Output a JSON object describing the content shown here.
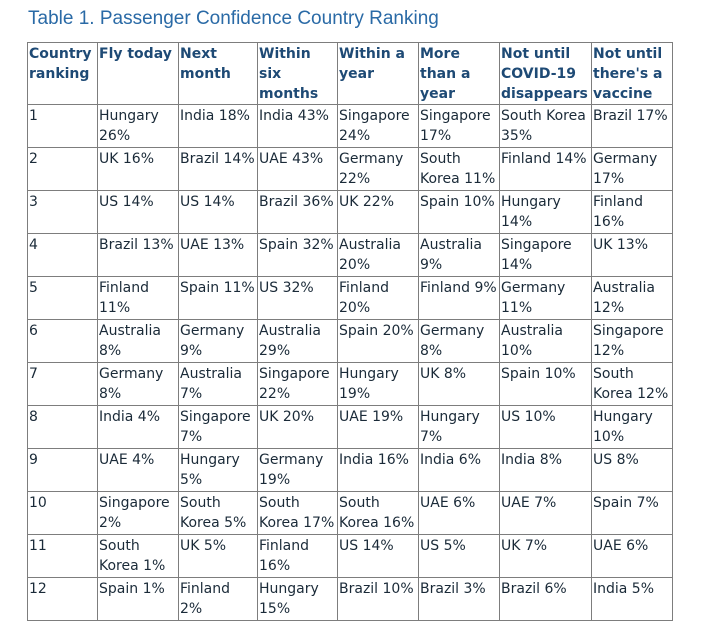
{
  "caption": "Table 1. Passenger Confidence Country Ranking",
  "table": {
    "headers": [
      "Country ranking",
      "Fly today",
      "Next month",
      "Within six months",
      "Within a year",
      "More than a year",
      "Not until COVID-19 disappears",
      "Not until there's a vaccine"
    ],
    "rows": [
      [
        "1",
        "Hungary 26%",
        "India 18%",
        "India 43%",
        "Singapore 24%",
        "Singapore 17%",
        "South Korea 35%",
        "Brazil 17%"
      ],
      [
        "2",
        "UK 16%",
        "Brazil 14%",
        "UAE 43%",
        "Germany 22%",
        "South Korea 11%",
        "Finland 14%",
        "Germany 17%"
      ],
      [
        "3",
        "US 14%",
        "US 14%",
        "Brazil 36%",
        "UK 22%",
        "Spain 10%",
        "Hungary 14%",
        "Finland 16%"
      ],
      [
        "4",
        "Brazil 13%",
        "UAE 13%",
        "Spain 32%",
        "Australia 20%",
        "Australia 9%",
        "Singapore 14%",
        "UK 13%"
      ],
      [
        "5",
        "Finland 11%",
        "Spain 11%",
        "US 32%",
        "Finland 20%",
        "Finland 9%",
        "Germany 11%",
        "Australia 12%"
      ],
      [
        "6",
        "Australia 8%",
        "Germany 9%",
        "Australia 29%",
        "Spain 20%",
        "Germany 8%",
        "Australia 10%",
        "Singapore 12%"
      ],
      [
        "7",
        "Germany 8%",
        "Australia 7%",
        "Singapore 22%",
        "Hungary 19%",
        "UK 8%",
        "Spain 10%",
        "South Korea 12%"
      ],
      [
        "8",
        "India 4%",
        "Singapore 7%",
        "UK 20%",
        "UAE 19%",
        "Hungary 7%",
        "US 10%",
        "Hungary 10%"
      ],
      [
        "9",
        "UAE 4%",
        "Hungary 5%",
        "Germany 19%",
        "India 16%",
        "India 6%",
        "India 8%",
        "US 8%"
      ],
      [
        "10",
        "Singapore 2%",
        "South Korea 5%",
        "South Korea 17%",
        "South Korea 16%",
        "UAE 6%",
        "UAE 7%",
        "Spain 7%"
      ],
      [
        "11",
        "South Korea 1%",
        "UK 5%",
        "Finland 16%",
        "US 14%",
        "US 5%",
        "UK 7%",
        "UAE 6%"
      ],
      [
        "12",
        "Spain 1%",
        "Finland 2%",
        "Hungary 15%",
        "Brazil 10%",
        "Brazil 3%",
        "Brazil 6%",
        "India 5%"
      ]
    ]
  }
}
